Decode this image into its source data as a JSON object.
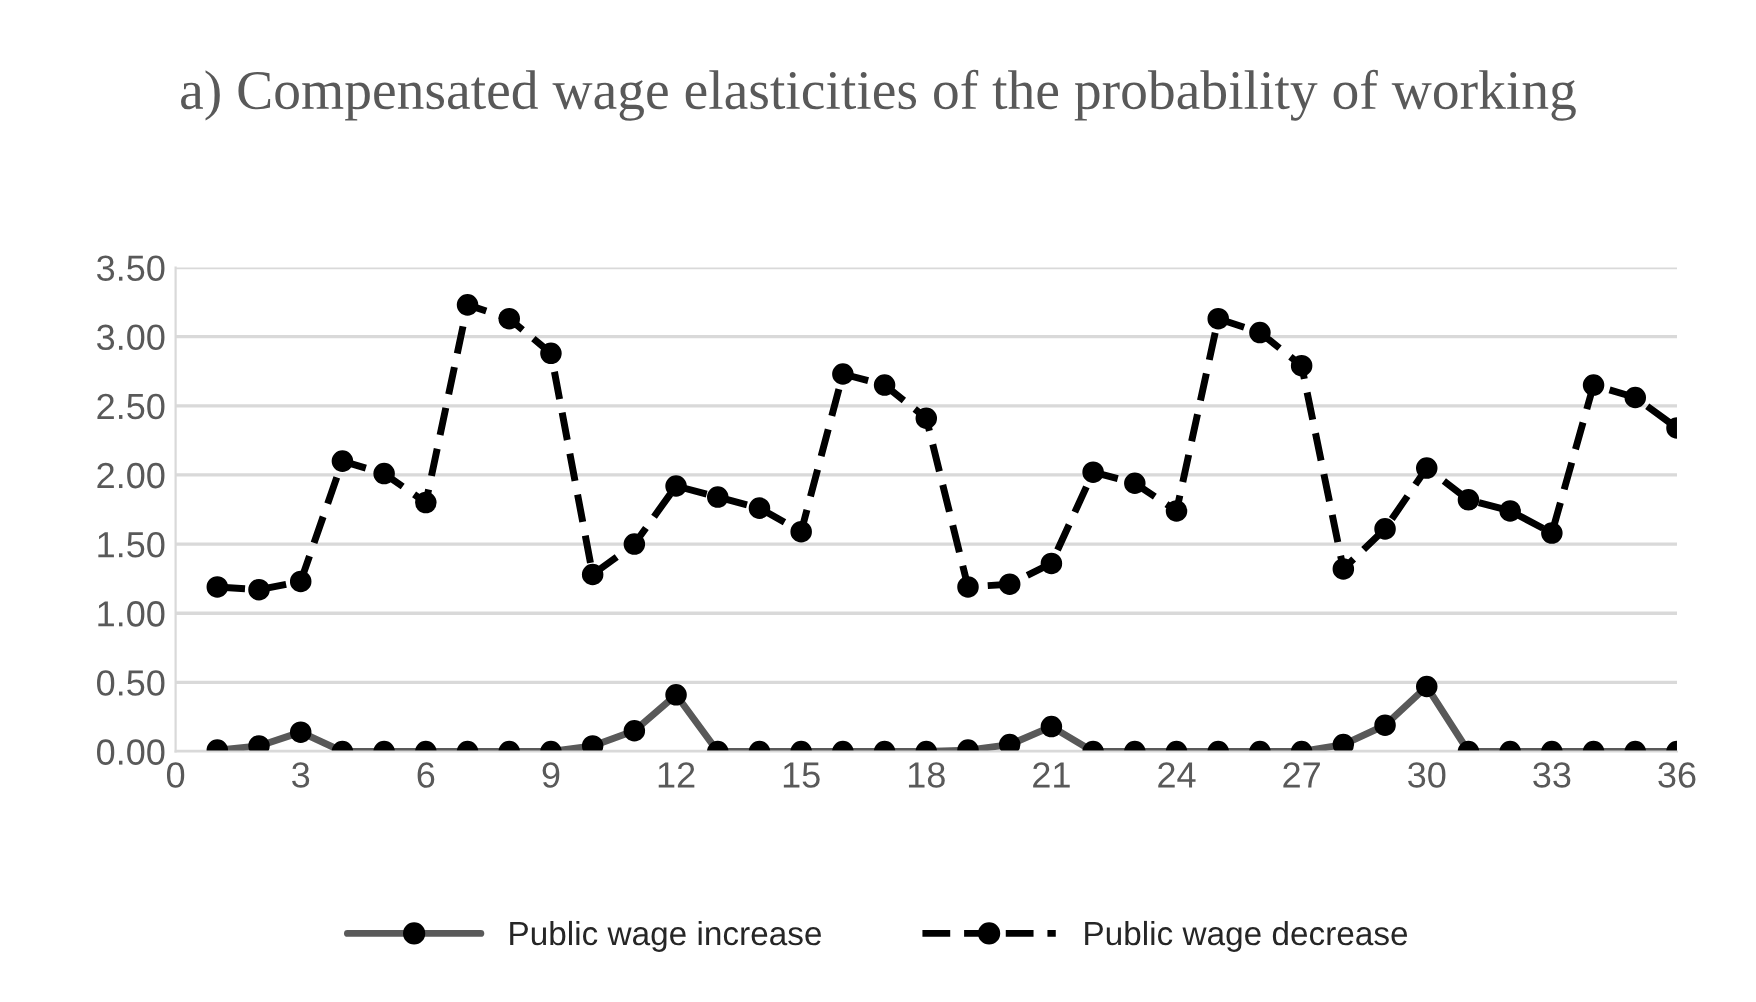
{
  "chart_data": {
    "type": "line",
    "title": "a) Compensated wage elasticities of the probability of working",
    "x": [
      1,
      2,
      3,
      4,
      5,
      6,
      7,
      8,
      9,
      10,
      11,
      12,
      13,
      14,
      15,
      16,
      17,
      18,
      19,
      20,
      21,
      22,
      23,
      24,
      25,
      26,
      27,
      28,
      29,
      30,
      31,
      32,
      33,
      34,
      35,
      36
    ],
    "series": [
      {
        "name": "Public wage increase",
        "color": "#595959",
        "line_style": "solid",
        "values": [
          0.01,
          0.04,
          0.14,
          0,
          0,
          0,
          0,
          0,
          0,
          0.04,
          0.15,
          0.41,
          0,
          0,
          0,
          0,
          0,
          0,
          0.01,
          0.05,
          0.18,
          0,
          0,
          0,
          0,
          0,
          0,
          0.05,
          0.19,
          0.47,
          0,
          0,
          0,
          0,
          0,
          0
        ]
      },
      {
        "name": "Public wage decrease",
        "color": "#000000",
        "line_style": "dashed",
        "values": [
          1.19,
          1.17,
          1.23,
          2.1,
          2.01,
          1.8,
          3.23,
          3.13,
          2.88,
          1.28,
          1.5,
          1.92,
          1.84,
          1.76,
          1.59,
          2.73,
          2.65,
          2.41,
          1.19,
          1.21,
          1.36,
          2.02,
          1.94,
          1.74,
          3.13,
          3.03,
          2.79,
          1.32,
          1.61,
          2.05,
          1.82,
          1.74,
          1.58,
          2.65,
          2.56,
          2.34
        ]
      }
    ],
    "marker": "circle",
    "xlim": [
      0,
      36
    ],
    "xticks": [
      0,
      3,
      6,
      9,
      12,
      15,
      18,
      21,
      24,
      27,
      30,
      33,
      36
    ],
    "ylim": [
      0,
      3.5
    ],
    "yticks": [
      {
        "value": 0,
        "label": "0.00"
      },
      {
        "value": 0.5,
        "label": "0.50"
      },
      {
        "value": 1,
        "label": "1.00"
      },
      {
        "value": 1.5,
        "label": "1.50"
      },
      {
        "value": 2,
        "label": "2.00"
      },
      {
        "value": 2.5,
        "label": "2.50"
      },
      {
        "value": 3,
        "label": "3.00"
      },
      {
        "value": 3.5,
        "label": "3.50"
      }
    ],
    "grid": "y",
    "legend": "bottom"
  }
}
